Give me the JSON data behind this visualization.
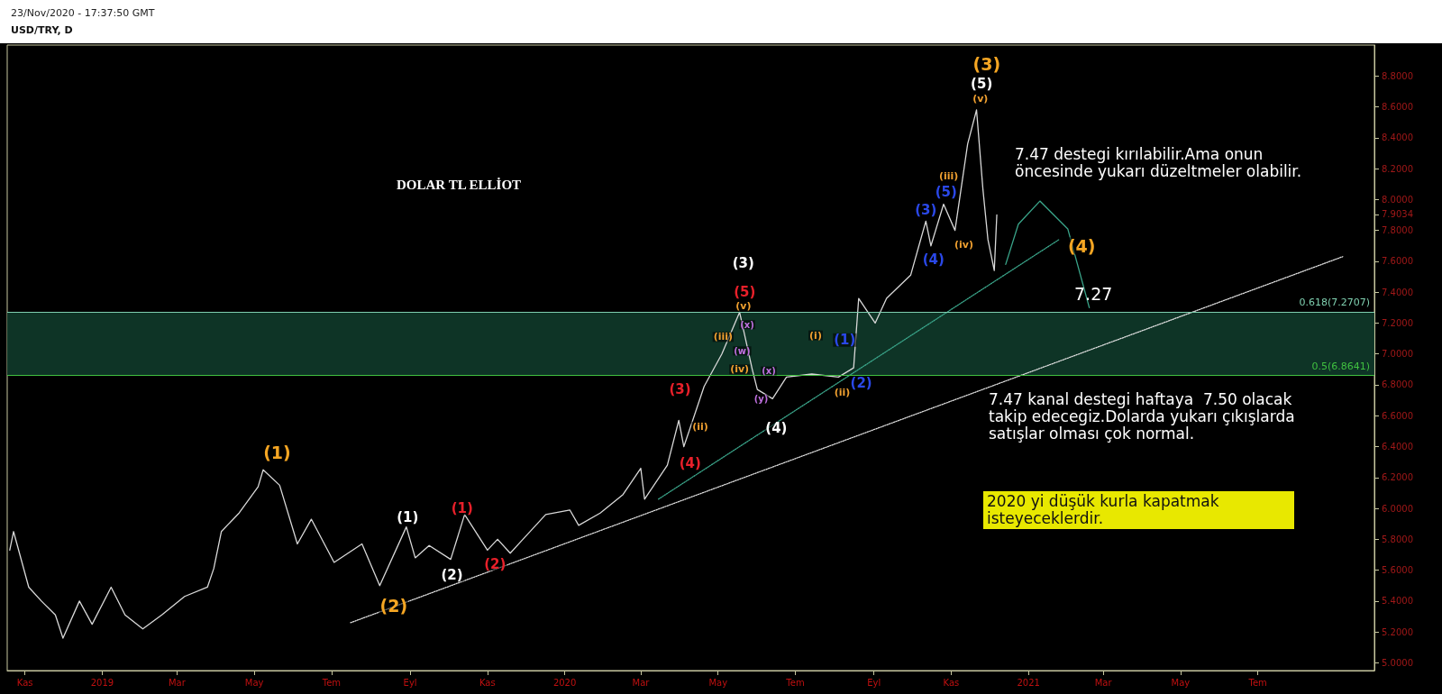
{
  "chart_data": {
    "type": "line",
    "title": "USD/TRY, D",
    "subtitle": "23/Nov/2020 - 17:37:50 GMT",
    "annotations": [
      "DOLAR TL ELLİOT",
      "7.47 destegi kırılabilir.Ama onun\nöncesinde yukarı düzeltmeler olabilir.",
      "7.27",
      "7.47 kanal destegi haftaya  7.50 olacak\ntakip edecegiz.Dolarda yukarı çıkışlarda\nsatışlar olması çok normal.",
      "2020 yi düşük kurla kapatmak\nisteyeceklerdir.",
      {
        "text": "(1)",
        "x": "2019-05-19",
        "y": 6.36
      },
      {
        "text": "(2)",
        "x": "2019-08-19",
        "y": 5.37
      },
      {
        "text": "(3)",
        "x": "2020-11-29",
        "y": 8.88
      },
      {
        "text": "(4)",
        "x": "2021-02-12",
        "y": 7.7
      },
      {
        "text": "(1)",
        "x": "2019-08-30",
        "y": 5.94
      },
      {
        "text": "(2)",
        "x": "2019-10-04",
        "y": 5.57
      },
      {
        "text": "(3)",
        "x": "2020-05-21",
        "y": 7.59
      },
      {
        "text": "(4)",
        "x": "2020-06-16",
        "y": 6.52
      },
      {
        "text": "(5)",
        "x": "2020-11-25",
        "y": 8.75
      },
      {
        "text": "(1)",
        "x": "2019-10-12",
        "y": 6.0
      },
      {
        "text": "(2)",
        "x": "2019-11-07",
        "y": 5.64
      },
      {
        "text": "(3)",
        "x": "2020-04-01",
        "y": 6.77
      },
      {
        "text": "(4)",
        "x": "2020-04-09",
        "y": 6.29
      },
      {
        "text": "(5)",
        "x": "2020-05-22",
        "y": 7.4
      },
      {
        "text": "(1)",
        "x": "2020-08-09",
        "y": 7.09
      },
      {
        "text": "(2)",
        "x": "2020-08-22",
        "y": 6.81
      },
      {
        "text": "(3)",
        "x": "2020-10-12",
        "y": 7.93
      },
      {
        "text": "(4)",
        "x": "2020-10-18",
        "y": 7.61
      },
      {
        "text": "(5)",
        "x": "2020-10-28",
        "y": 8.05
      },
      {
        "text": "(ii)",
        "x": "2020-04-17",
        "y": 6.53
      },
      {
        "text": "(iii)",
        "x": "2020-05-05",
        "y": 7.11
      },
      {
        "text": "(iv)",
        "x": "2020-05-18",
        "y": 6.9
      },
      {
        "text": "(v)",
        "x": "2020-05-21",
        "y": 7.31
      },
      {
        "text": "(i)",
        "x": "2020-07-17",
        "y": 7.12
      },
      {
        "text": "(ii)",
        "x": "2020-08-07",
        "y": 6.75
      },
      {
        "text": "(iii)",
        "x": "2020-10-30",
        "y": 8.15
      },
      {
        "text": "(iv)",
        "x": "2020-11-11",
        "y": 7.71
      },
      {
        "text": "(v)",
        "x": "2020-11-24",
        "y": 8.65
      },
      {
        "text": "(x)",
        "x": "2020-05-24",
        "y": 7.19
      },
      {
        "text": "(w)",
        "x": "2020-05-20",
        "y": 7.02
      },
      {
        "text": "(x)",
        "x": "2020-06-10",
        "y": 6.89
      },
      {
        "text": "(y)",
        "x": "2020-06-04",
        "y": 6.71
      }
    ],
    "x": [
      "2018-10-20",
      "2018-10-23",
      "2018-11-04",
      "2018-11-14",
      "2018-11-25",
      "2018-12-01",
      "2018-12-14",
      "2018-12-24",
      "2019-01-08",
      "2019-01-19",
      "2019-02-02",
      "2019-02-17",
      "2019-03-07",
      "2019-03-25",
      "2019-03-30",
      "2019-04-05",
      "2019-04-19",
      "2019-05-04",
      "2019-05-08",
      "2019-05-21",
      "2019-06-04",
      "2019-06-15",
      "2019-07-03",
      "2019-07-25",
      "2019-08-08",
      "2019-08-29",
      "2019-09-05",
      "2019-09-16",
      "2019-10-03",
      "2019-10-14",
      "2019-11-01",
      "2019-11-09",
      "2019-11-19",
      "2019-11-29",
      "2019-12-17",
      "2020-01-05",
      "2020-01-12",
      "2020-01-29",
      "2020-02-16",
      "2020-03-01",
      "2020-03-04",
      "2020-03-22",
      "2020-03-31",
      "2020-04-04",
      "2020-04-20",
      "2020-05-04",
      "2020-05-18",
      "2020-05-28",
      "2020-06-01",
      "2020-06-13",
      "2020-06-24",
      "2020-07-14",
      "2020-08-04",
      "2020-08-16",
      "2020-08-20",
      "2020-09-02",
      "2020-09-11",
      "2020-09-30",
      "2020-10-12",
      "2020-10-16",
      "2020-10-26",
      "2020-11-04",
      "2020-11-14",
      "2020-11-21",
      "2020-11-26",
      "2020-11-30",
      "2020-12-05",
      "2020-12-07"
    ],
    "series": [
      {
        "color": "#d8d8d8",
        "values": [
          5.73,
          5.85,
          5.49,
          5.4,
          5.31,
          5.16,
          5.4,
          5.25,
          5.49,
          5.31,
          5.22,
          5.31,
          5.43,
          5.49,
          5.61,
          5.85,
          5.97,
          6.14,
          6.25,
          6.15,
          5.77,
          5.93,
          5.65,
          5.77,
          5.5,
          5.88,
          5.68,
          5.76,
          5.67,
          5.96,
          5.73,
          5.8,
          5.71,
          5.8,
          5.96,
          5.99,
          5.89,
          5.97,
          6.09,
          6.26,
          6.06,
          6.28,
          6.57,
          6.4,
          6.79,
          7.0,
          7.27,
          6.9,
          6.77,
          6.71,
          6.85,
          6.87,
          6.85,
          6.91,
          7.36,
          7.2,
          7.36,
          7.51,
          7.86,
          7.7,
          7.97,
          7.8,
          8.36,
          8.58,
          8.07,
          7.74,
          7.54,
          7.9
        ]
      },
      {
        "type": "line",
        "color": "#dddddd",
        "line_style": "dotted",
        "x": [
          "2019-07-16",
          "2021-09-06"
        ],
        "values": [
          5.26,
          7.63
        ]
      },
      {
        "type": "line",
        "color": "#3aa58a",
        "line_style": "dotted",
        "x": [
          "2020-03-15",
          "2021-01-25"
        ],
        "values": [
          6.06,
          7.74
        ]
      },
      {
        "type": "line",
        "color": "#3aa58a",
        "line_style": "solid",
        "x": [
          "2020-12-14",
          "2020-12-24",
          "2021-01-10",
          "2021-02-01",
          "2021-02-18"
        ],
        "values": [
          7.58,
          7.84,
          7.99,
          7.81,
          7.3
        ]
      }
    ],
    "xlim": [
      "2018-10-18",
      "2021-10-01"
    ],
    "xticks": [
      {
        "value": "2018-11-01",
        "label": "Kas"
      },
      {
        "value": "2019-01-01",
        "label": "2019"
      },
      {
        "value": "2019-03-01",
        "label": "Mar"
      },
      {
        "value": "2019-05-01",
        "label": "May"
      },
      {
        "value": "2019-07-01",
        "label": "Tem"
      },
      {
        "value": "2019-09-01",
        "label": "Eyl"
      },
      {
        "value": "2019-11-01",
        "label": "Kas"
      },
      {
        "value": "2020-01-01",
        "label": "2020"
      },
      {
        "value": "2020-03-01",
        "label": "Mar"
      },
      {
        "value": "2020-05-01",
        "label": "May"
      },
      {
        "value": "2020-07-01",
        "label": "Tem"
      },
      {
        "value": "2020-09-01",
        "label": "Eyl"
      },
      {
        "value": "2020-11-01",
        "label": "Kas"
      },
      {
        "value": "2021-01-01",
        "label": "2021"
      },
      {
        "value": "2021-03-01",
        "label": "Mar"
      },
      {
        "value": "2021-05-01",
        "label": "May"
      },
      {
        "value": "2021-07-01",
        "label": "Tem"
      }
    ],
    "ylim": [
      4.95,
      9.0
    ],
    "yticks": [
      {
        "value": 5.0,
        "label": "5.0000"
      },
      {
        "value": 5.2,
        "label": "5.2000"
      },
      {
        "value": 5.4,
        "label": "5.4000"
      },
      {
        "value": 5.6,
        "label": "5.6000"
      },
      {
        "value": 5.8,
        "label": "5.8000"
      },
      {
        "value": 6.0,
        "label": "6.0000"
      },
      {
        "value": 6.2,
        "label": "6.2000"
      },
      {
        "value": 6.4,
        "label": "6.4000"
      },
      {
        "value": 6.6,
        "label": "6.6000"
      },
      {
        "value": 6.8,
        "label": "6.8000"
      },
      {
        "value": 7.0,
        "label": "7.0000"
      },
      {
        "value": 7.2,
        "label": "7.2000"
      },
      {
        "value": 7.4,
        "label": "7.4000"
      },
      {
        "value": 7.6,
        "label": "7.6000"
      },
      {
        "value": 7.8,
        "label": "7.8000"
      },
      {
        "value": 7.9034,
        "label": "7.9034"
      },
      {
        "value": 8.0,
        "label": "8.0000"
      },
      {
        "value": 8.2,
        "label": "8.2000"
      },
      {
        "value": 8.4,
        "label": "8.4000"
      },
      {
        "value": 8.6,
        "label": "8.6000"
      },
      {
        "value": 8.8,
        "label": "8.8000"
      }
    ],
    "ref_lines": [
      {
        "axis": "y",
        "value": 7.2707,
        "label": "0.618(7.2707)",
        "color": "#7fd0b0"
      },
      {
        "axis": "y",
        "value": 6.8641,
        "label": "0.5(6.8641)",
        "color": "#40c040"
      }
    ],
    "bands": [
      {
        "axis": "y",
        "from": 6.8641,
        "to": 7.2707,
        "color": "#0f3a2a"
      }
    ],
    "marker": "none",
    "grid": false
  }
}
